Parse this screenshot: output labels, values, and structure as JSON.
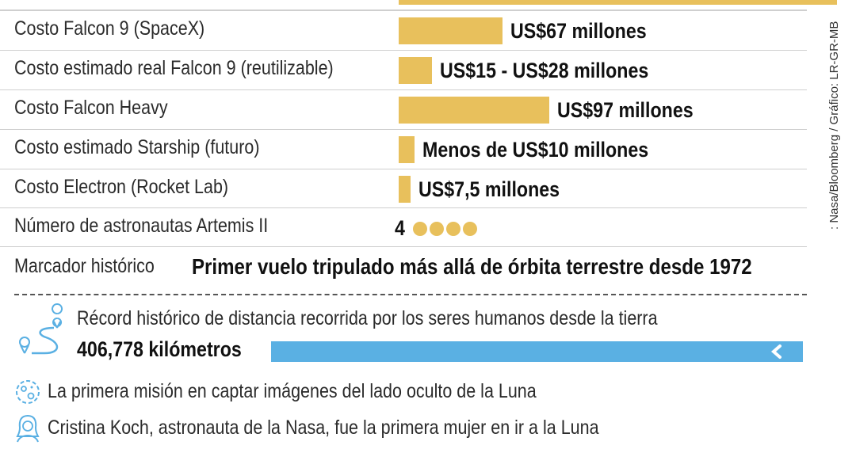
{
  "colors": {
    "bar": "#e8c05c",
    "distance_bar": "#5ab0e3"
  },
  "chart_data": {
    "type": "bar",
    "categories": [
      "Costo Falcon 9 (SpaceX)",
      "Costo estimado real Falcon 9 (reutilizable)",
      "Costo Falcon Heavy",
      "Costo estimado Starship (futuro)",
      "Costo Electron (Rocket Lab)"
    ],
    "values": [
      67,
      21.5,
      97,
      10,
      7.5
    ],
    "value_labels": [
      "US$67 millones",
      "US$15 - US$28 millones",
      "US$97 millones",
      "Menos de US$10 millones",
      "US$7,5 millones"
    ],
    "units": "millones de US$"
  },
  "astronauts": {
    "label": "Número de astronautas Artemis II",
    "value": "4",
    "count": 4
  },
  "marker": {
    "label": "Marcador histórico",
    "text": "Primer vuelo tripulado más allá de órbita terrestre desde 1972"
  },
  "record": {
    "text": "Récord histórico de distancia recorrida por los seres humanos desde la tierra",
    "value": "406,778 kilómetros"
  },
  "facts": [
    {
      "icon": "moon-icon",
      "text": "La primera misión en captar imágenes del lado oculto de la Luna"
    },
    {
      "icon": "woman-astronaut-icon",
      "text": "Cristina Koch, astronauta de la Nasa, fue la primera mujer en ir a la Luna"
    }
  ],
  "source": ": Nasa/Bloomberg / Gráfico: LR-GR-MB"
}
